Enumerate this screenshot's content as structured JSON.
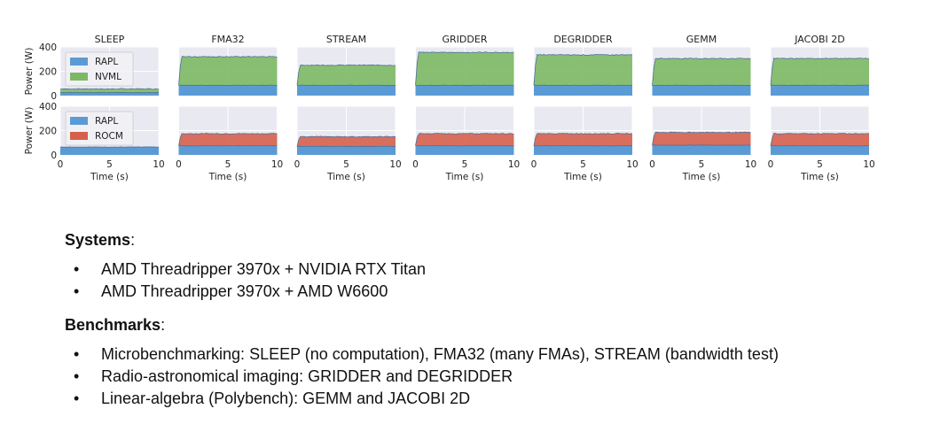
{
  "chart_data": {
    "type": "area",
    "ylabel": "Power (W)",
    "xlabel": "Time (s)",
    "xlim": [
      0,
      10
    ],
    "xticks": [
      "0",
      "5",
      "10"
    ],
    "ylim": [
      0,
      400
    ],
    "yticks": [
      "0",
      "200",
      "400"
    ],
    "grid": true,
    "legend_placement": "top-left (first column only)",
    "colors": {
      "RAPL": "#5b9bd5",
      "NVML": "#7db964",
      "ROCM": "#d6604d",
      "panel_bg": "#e9e9f1"
    },
    "panels": [
      "SLEEP",
      "FMA32",
      "STREAM",
      "GRIDDER",
      "DEGRIDDER",
      "GEMM",
      "JACOBI 2D"
    ],
    "rows": [
      {
        "name": "NVIDIA",
        "series_names": [
          "RAPL",
          "NVML"
        ],
        "stacked": true,
        "RAPL": [
          25,
          85,
          85,
          85,
          85,
          85,
          85
        ],
        "NVML": [
          30,
          235,
          165,
          270,
          250,
          220,
          220
        ]
      },
      {
        "name": "AMD",
        "series_names": [
          "RAPL",
          "ROCM"
        ],
        "stacked": true,
        "RAPL": [
          65,
          75,
          70,
          75,
          75,
          80,
          75
        ],
        "ROCM": [
          0,
          100,
          80,
          100,
          100,
          105,
          100
        ]
      }
    ]
  },
  "notes": {
    "systems_heading": "Systems",
    "systems": [
      "AMD Threadripper 3970x + NVIDIA RTX Titan",
      "AMD Threadripper 3970x + AMD W6600"
    ],
    "benchmarks_heading": "Benchmarks",
    "benchmarks": [
      "Microbenchmarking: SLEEP (no computation), FMA32 (many FMAs), STREAM (bandwidth test)",
      "Radio-astronomical imaging: GRIDDER and DEGRIDDER",
      "Linear-algebra (Polybench): GEMM and JACOBI 2D"
    ],
    "colon": ":",
    "bullet": "•"
  }
}
